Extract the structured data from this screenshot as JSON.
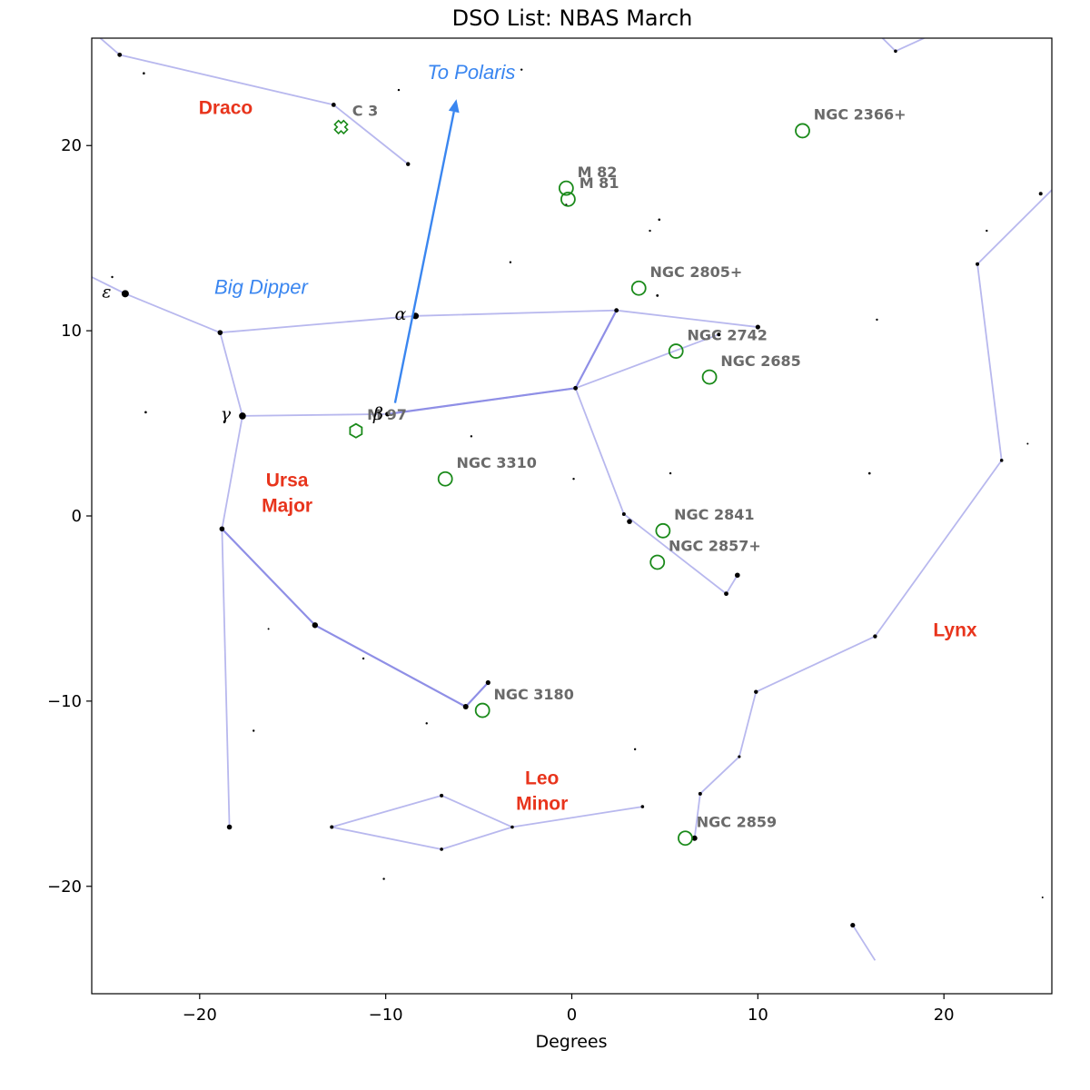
{
  "chart_data": {
    "type": "scatter",
    "title": "DSO List: NBAS March",
    "xlabel": "Degrees",
    "ylabel": "",
    "xlim": [
      -25.8,
      25.8
    ],
    "ylim": [
      -25.8,
      25.8
    ],
    "xticks": [
      -20,
      -10,
      0,
      10,
      20
    ],
    "yticks": [
      -20,
      -10,
      0,
      10,
      20
    ],
    "grid": false,
    "colors": {
      "constellation_line": "#b8b8ee",
      "constellation_line_strong": "#8f8fe6",
      "dso_marker": "#1a8a1a",
      "constellation_label": "#e8341c",
      "asterism": "#3a86f0",
      "dso_label": "#6a6a6a",
      "star": "#000000"
    },
    "constellation_lines": [
      {
        "points": [
          [
            -25.8,
            26.2
          ],
          [
            -24.3,
            24.9
          ],
          [
            -12.8,
            22.2
          ],
          [
            -8.8,
            19.0
          ]
        ],
        "strong": false
      },
      {
        "points": [
          [
            -25.8,
            12.9
          ],
          [
            -24.0,
            12.0
          ],
          [
            -18.9,
            9.9
          ],
          [
            -8.4,
            10.8
          ],
          [
            2.4,
            11.1
          ],
          [
            10.0,
            10.2
          ]
        ],
        "strong": false
      },
      {
        "points": [
          [
            -18.9,
            9.9
          ],
          [
            -17.7,
            5.4
          ],
          [
            -9.9,
            5.5
          ],
          [
            0.2,
            6.9
          ]
        ],
        "strong": false
      },
      {
        "points": [
          [
            -9.9,
            5.5
          ],
          [
            0.2,
            6.9
          ]
        ],
        "strong": true
      },
      {
        "points": [
          [
            0.2,
            6.9
          ],
          [
            2.4,
            11.1
          ]
        ],
        "strong": true
      },
      {
        "points": [
          [
            0.2,
            6.9
          ],
          [
            7.9,
            9.8
          ]
        ],
        "strong": false
      },
      {
        "points": [
          [
            0.2,
            6.9
          ],
          [
            2.8,
            0.1
          ],
          [
            8.3,
            -4.2
          ],
          [
            8.9,
            -3.2
          ]
        ],
        "strong": false
      },
      {
        "points": [
          [
            -17.7,
            5.4
          ],
          [
            -18.8,
            -0.7
          ],
          [
            -18.4,
            -16.8
          ]
        ],
        "strong": false
      },
      {
        "points": [
          [
            -18.8,
            -0.7
          ],
          [
            -13.8,
            -5.9
          ],
          [
            -5.7,
            -10.3
          ],
          [
            -4.5,
            -9.0
          ]
        ],
        "strong": true
      },
      {
        "points": [
          [
            -12.9,
            -16.8
          ],
          [
            -7.0,
            -15.1
          ],
          [
            -3.2,
            -16.8
          ],
          [
            -7.0,
            -18.0
          ],
          [
            -12.9,
            -16.8
          ]
        ],
        "strong": false
      },
      {
        "points": [
          [
            -3.2,
            -16.8
          ],
          [
            3.8,
            -15.7
          ]
        ],
        "strong": false
      },
      {
        "points": [
          [
            16.3,
            -24.0
          ],
          [
            15.1,
            -22.1
          ]
        ],
        "strong": false
      },
      {
        "points": [
          [
            6.6,
            -17.4
          ],
          [
            6.9,
            -15.0
          ],
          [
            9.0,
            -13.0
          ],
          [
            9.9,
            -9.5
          ],
          [
            16.3,
            -6.5
          ],
          [
            23.1,
            3.0
          ],
          [
            21.8,
            13.6
          ],
          [
            25.8,
            17.6
          ]
        ],
        "strong": false
      },
      {
        "points": [
          [
            16.3,
            26.2
          ],
          [
            17.4,
            25.1
          ],
          [
            19.8,
            26.2
          ]
        ],
        "strong": false
      }
    ],
    "stars": [
      [
        -24.3,
        24.9,
        2.4
      ],
      [
        -23.0,
        23.9,
        1.3
      ],
      [
        -12.8,
        22.2,
        2.4
      ],
      [
        -8.8,
        19.0,
        2.2
      ],
      [
        -24.0,
        12.0,
        4.0
      ],
      [
        -18.9,
        9.9,
        2.8
      ],
      [
        -8.4,
        10.8,
        3.6
      ],
      [
        2.4,
        11.1,
        2.4
      ],
      [
        10.0,
        10.2,
        2.6
      ],
      [
        -17.7,
        5.4,
        3.8
      ],
      [
        -9.9,
        5.5,
        2.6
      ],
      [
        0.2,
        6.9,
        2.4
      ],
      [
        7.9,
        9.8,
        2.0
      ],
      [
        2.8,
        0.1,
        2.0
      ],
      [
        3.1,
        -0.3,
        2.8
      ],
      [
        8.3,
        -4.2,
        2.4
      ],
      [
        8.9,
        -3.2,
        2.8
      ],
      [
        -18.8,
        -0.7,
        2.8
      ],
      [
        -18.4,
        -16.8,
        2.8
      ],
      [
        -13.8,
        -5.9,
        3.2
      ],
      [
        -5.7,
        -10.3,
        3.0
      ],
      [
        -4.5,
        -9.0,
        2.6
      ],
      [
        -12.9,
        -16.8,
        2.0
      ],
      [
        -7.0,
        -15.1,
        2.0
      ],
      [
        -3.2,
        -16.8,
        1.8
      ],
      [
        -7.0,
        -18.0,
        1.8
      ],
      [
        3.8,
        -15.7,
        1.8
      ],
      [
        6.6,
        -17.4,
        3.0
      ],
      [
        6.9,
        -15.0,
        2.0
      ],
      [
        9.0,
        -13.0,
        1.6
      ],
      [
        9.9,
        -9.5,
        2.2
      ],
      [
        16.3,
        -6.5,
        2.2
      ],
      [
        23.1,
        3.0,
        1.8
      ],
      [
        21.8,
        13.6,
        2.0
      ],
      [
        25.2,
        17.4,
        2.0
      ],
      [
        15.1,
        -22.1,
        2.6
      ],
      [
        17.4,
        25.1,
        1.8
      ],
      [
        -9.3,
        23.0,
        1.2
      ],
      [
        -2.7,
        24.1,
        1.2
      ],
      [
        -0.3,
        16.8,
        1.2
      ],
      [
        4.7,
        16.0,
        1.3
      ],
      [
        4.2,
        15.4,
        1.2
      ],
      [
        -3.3,
        13.7,
        1.2
      ],
      [
        4.6,
        11.9,
        1.4
      ],
      [
        16.4,
        10.6,
        1.2
      ],
      [
        22.3,
        15.4,
        1.2
      ],
      [
        -24.7,
        12.9,
        1.2
      ],
      [
        -22.9,
        5.6,
        1.3
      ],
      [
        -5.4,
        4.3,
        1.2
      ],
      [
        0.1,
        2.0,
        1.2
      ],
      [
        5.3,
        2.3,
        1.2
      ],
      [
        16.0,
        2.3,
        1.3
      ],
      [
        24.5,
        3.9,
        1.0
      ],
      [
        -16.3,
        -6.1,
        1.0
      ],
      [
        -11.2,
        -7.7,
        1.2
      ],
      [
        -17.1,
        -11.6,
        1.2
      ],
      [
        -7.8,
        -11.2,
        1.2
      ],
      [
        3.4,
        -12.6,
        1.2
      ],
      [
        -10.1,
        -19.6,
        1.2
      ],
      [
        25.3,
        -20.6,
        1.0
      ]
    ],
    "dso": [
      {
        "name": "C 3",
        "x": -12.4,
        "y": 21.0,
        "marker": "cross",
        "label_dx": 0.6,
        "label_dy": 0.6
      },
      {
        "name": "NGC 2366+",
        "x": 12.4,
        "y": 20.8,
        "marker": "circle",
        "label_dx": 0.6,
        "label_dy": 0.6
      },
      {
        "name": "M 82",
        "x": -0.3,
        "y": 17.7,
        "marker": "circle",
        "label_dx": 0.6,
        "label_dy": 0.6
      },
      {
        "name": "M 81",
        "x": -0.2,
        "y": 17.1,
        "marker": "circle",
        "label_dx": 0.6,
        "label_dy": 0.6
      },
      {
        "name": "NGC 2805+",
        "x": 3.6,
        "y": 12.3,
        "marker": "circle",
        "label_dx": 0.6,
        "label_dy": 0.6
      },
      {
        "name": "NGC 2742",
        "x": 5.6,
        "y": 8.9,
        "marker": "circle",
        "label_dx": 0.6,
        "label_dy": 0.6
      },
      {
        "name": "NGC 2685",
        "x": 7.4,
        "y": 7.5,
        "marker": "circle",
        "label_dx": 0.6,
        "label_dy": 0.6
      },
      {
        "name": "M 97",
        "x": -11.6,
        "y": 4.6,
        "marker": "hexagon",
        "label_dx": 0.6,
        "label_dy": 0.6
      },
      {
        "name": "NGC 3310",
        "x": -6.8,
        "y": 2.0,
        "marker": "circle",
        "label_dx": 0.6,
        "label_dy": 0.6
      },
      {
        "name": "NGC 2841",
        "x": 4.9,
        "y": -0.8,
        "marker": "circle",
        "label_dx": 0.6,
        "label_dy": 0.6
      },
      {
        "name": "NGC 2857+",
        "x": 4.6,
        "y": -2.5,
        "marker": "circle",
        "label_dx": 0.6,
        "label_dy": 0.6
      },
      {
        "name": "NGC 3180",
        "x": -4.8,
        "y": -10.5,
        "marker": "circle",
        "label_dx": 0.6,
        "label_dy": 0.6
      },
      {
        "name": "NGC 2859",
        "x": 6.1,
        "y": -17.4,
        "marker": "circle",
        "label_dx": 0.6,
        "label_dy": 0.6
      }
    ],
    "constellation_labels": [
      {
        "lines": [
          "Draco"
        ],
        "x": -18.6,
        "y": 21.7
      },
      {
        "lines": [
          "Ursa",
          "Major"
        ],
        "x": -15.3,
        "y": 1.6
      },
      {
        "lines": [
          "Leo",
          "Minor"
        ],
        "x": -1.6,
        "y": -14.5
      },
      {
        "lines": [
          "Lynx"
        ],
        "x": 20.6,
        "y": -6.5
      }
    ],
    "asterism_labels": [
      {
        "text": "Big Dipper",
        "x": -16.7,
        "y": 12.0
      },
      {
        "text": "To Polaris",
        "x": -5.4,
        "y": 23.6
      }
    ],
    "arrow": {
      "from": [
        -9.5,
        6.1
      ],
      "to": [
        -6.2,
        22.5
      ]
    },
    "greek_labels": [
      {
        "text": "ε",
        "x": -25.0,
        "y": 11.8
      },
      {
        "text": "α",
        "x": -9.2,
        "y": 10.6
      },
      {
        "text": "β",
        "x": -10.4,
        "y": 5.2
      },
      {
        "text": "γ",
        "x": -18.6,
        "y": 5.2
      }
    ]
  }
}
